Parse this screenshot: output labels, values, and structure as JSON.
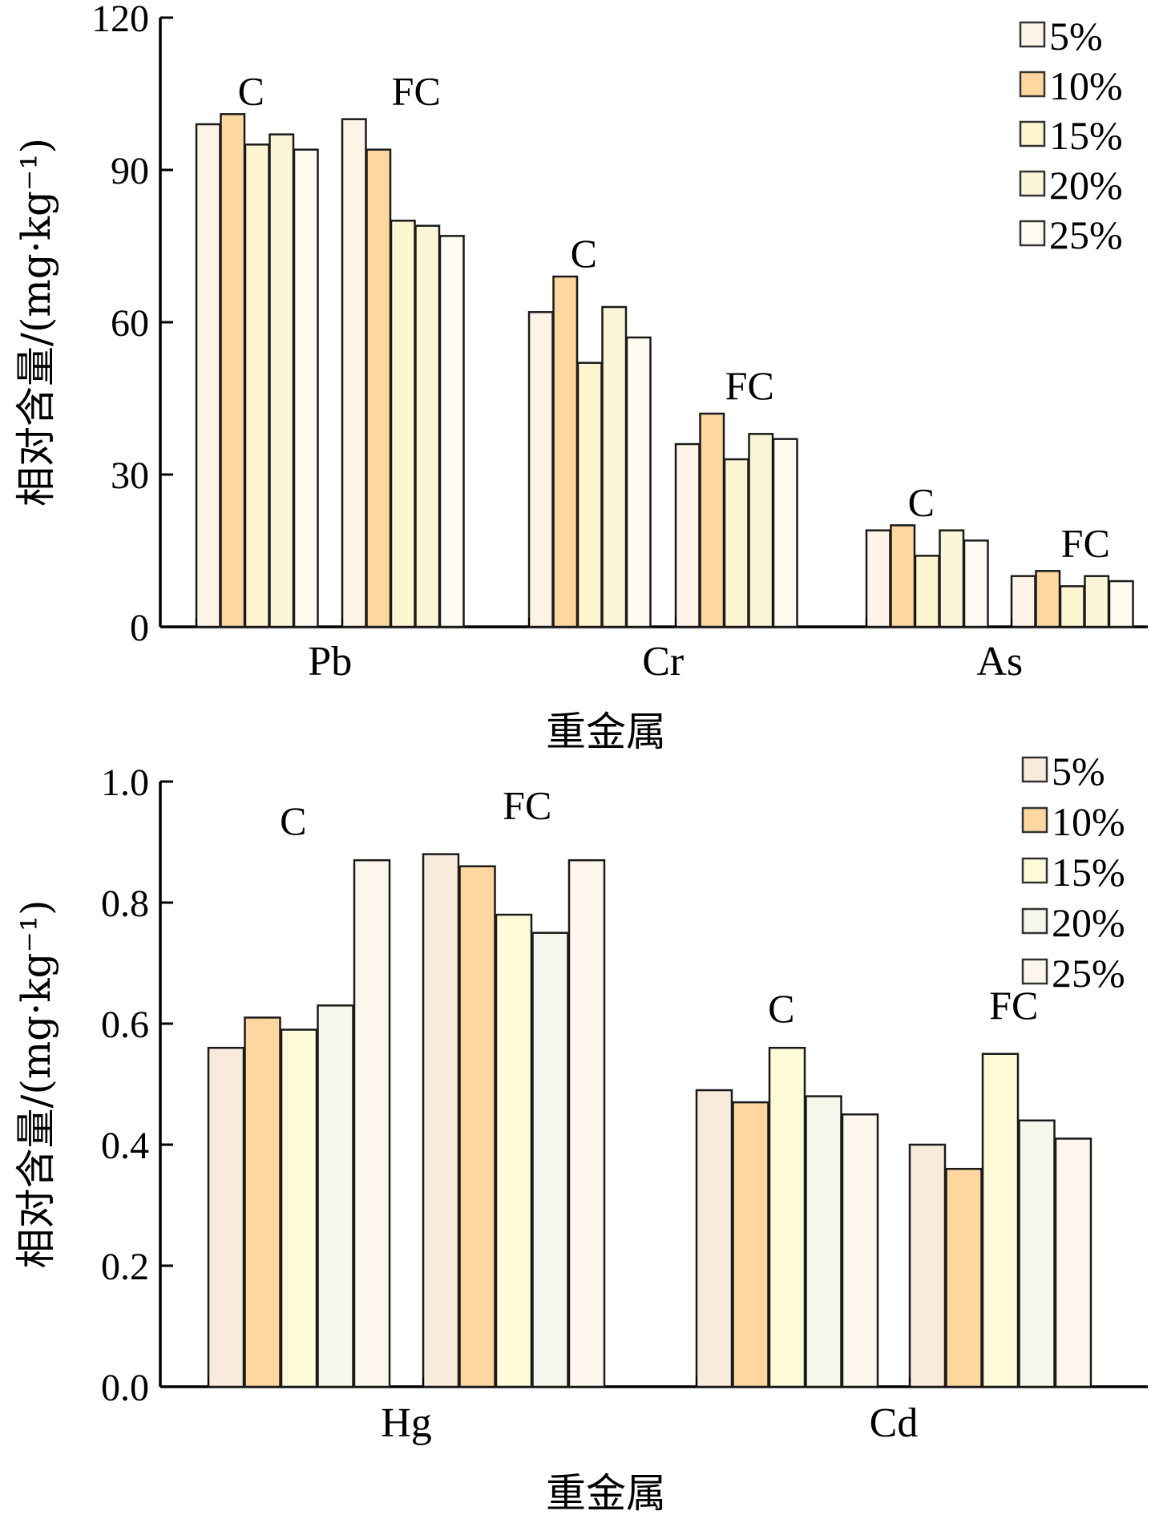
{
  "chart_data": [
    {
      "type": "bar",
      "xlabel": "重金属",
      "ylabel": "相对含量/(mg·kg⁻¹)",
      "ylim": [
        0,
        120
      ],
      "yticks": [
        "0",
        "30",
        "60",
        "90",
        "120"
      ],
      "categories": [
        "Pb",
        "Cr",
        "As"
      ],
      "groups": [
        "C",
        "FC"
      ],
      "series_names": [
        "5%",
        "10%",
        "15%",
        "20%",
        "25%"
      ],
      "colors": [
        "#fdf3e6",
        "#fdd6a0",
        "#fdf5d0",
        "#fcf5d8",
        "#fefbf1"
      ],
      "legend": "top-right",
      "grid": false,
      "data": {
        "Pb": {
          "C": [
            99,
            101,
            95,
            97,
            94
          ],
          "FC": [
            100,
            94,
            80,
            79,
            77
          ]
        },
        "Cr": {
          "C": [
            62,
            69,
            52,
            63,
            57
          ],
          "FC": [
            36,
            42,
            33,
            38,
            37
          ]
        },
        "As": {
          "C": [
            19,
            20,
            14,
            19,
            17
          ],
          "FC": [
            10,
            11,
            8,
            10,
            9
          ]
        }
      }
    },
    {
      "type": "bar",
      "xlabel": "重金属",
      "ylabel": "相对含量/(mg·kg⁻¹)",
      "ylim": [
        0,
        1.0
      ],
      "yticks": [
        "0.0",
        "0.2",
        "0.4",
        "0.6",
        "0.8",
        "1.0"
      ],
      "categories": [
        "Hg",
        "Cd"
      ],
      "groups": [
        "C",
        "FC"
      ],
      "series_names": [
        "5%",
        "10%",
        "15%",
        "20%",
        "25%"
      ],
      "colors": [
        "#f9ebdb",
        "#fdd6a0",
        "#fefbd8",
        "#f5f7ec",
        "#fdf6ec"
      ],
      "legend": "top-right",
      "grid": false,
      "data": {
        "Hg": {
          "C": [
            0.56,
            0.61,
            0.59,
            0.63,
            0.87
          ],
          "FC": [
            0.88,
            0.86,
            0.78,
            0.75,
            0.87
          ]
        },
        "Cd": {
          "C": [
            0.49,
            0.47,
            0.56,
            0.48,
            0.45
          ],
          "FC": [
            0.4,
            0.36,
            0.55,
            0.44,
            0.41
          ]
        }
      }
    }
  ]
}
